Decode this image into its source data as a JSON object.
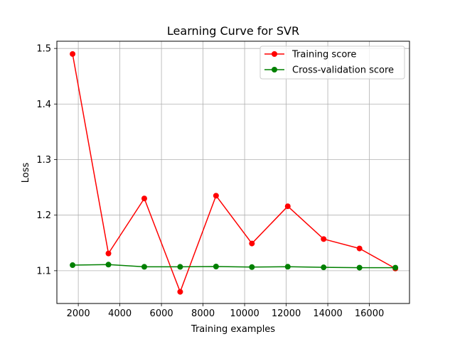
{
  "chart_data": {
    "type": "line",
    "title": "Learning Curve for SVR",
    "xlabel": "Training examples",
    "ylabel": "Loss",
    "xlim": [
      970,
      17930
    ],
    "ylim": [
      1.041,
      1.513
    ],
    "xticks": [
      2000,
      4000,
      6000,
      8000,
      10000,
      12000,
      14000,
      16000
    ],
    "xtick_labels": [
      "2000",
      "4000",
      "6000",
      "8000",
      "10000",
      "12000",
      "14000",
      "16000"
    ],
    "yticks": [
      1.1,
      1.2,
      1.3,
      1.4,
      1.5
    ],
    "ytick_labels": [
      "1.1",
      "1.2",
      "1.3",
      "1.4",
      "1.5"
    ],
    "grid": true,
    "legend_position": "top-right",
    "x": [
      1725,
      3450,
      5175,
      6900,
      8625,
      10350,
      12075,
      13800,
      15525,
      17250
    ],
    "series": [
      {
        "name": "Training score",
        "color": "#ff0000",
        "values": [
          1.49,
          1.131,
          1.23,
          1.062,
          1.235,
          1.149,
          1.216,
          1.157,
          1.14,
          1.104
        ]
      },
      {
        "name": "Cross-validation score",
        "color": "#008000",
        "values": [
          1.11,
          1.111,
          1.107,
          1.107,
          1.1075,
          1.1065,
          1.1072,
          1.106,
          1.1055,
          1.1055
        ]
      }
    ]
  }
}
